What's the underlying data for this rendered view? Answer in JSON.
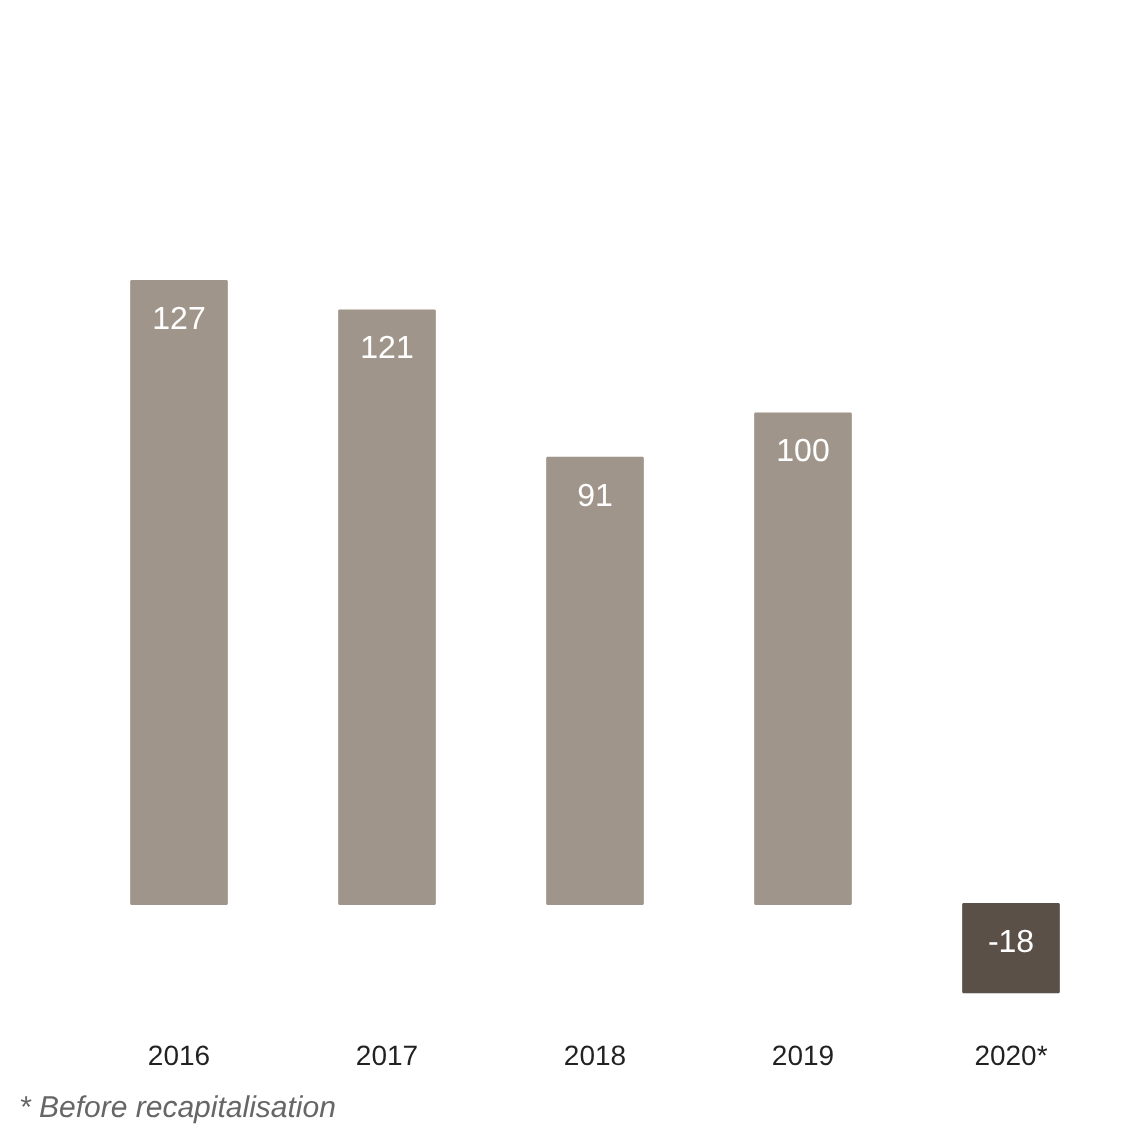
{
  "chart_data": {
    "type": "bar",
    "categories": [
      "2016",
      "2017",
      "2018",
      "2019",
      "2020*"
    ],
    "values": [
      127,
      121,
      91,
      100,
      -18
    ],
    "colors": [
      "#a0958a",
      "#a0958a",
      "#a0958a",
      "#a0958a",
      "#5a5047"
    ],
    "data_labels": true,
    "tick_labels": "x",
    "grid": false,
    "annotations": [
      "* Before recapitalisation"
    ]
  }
}
